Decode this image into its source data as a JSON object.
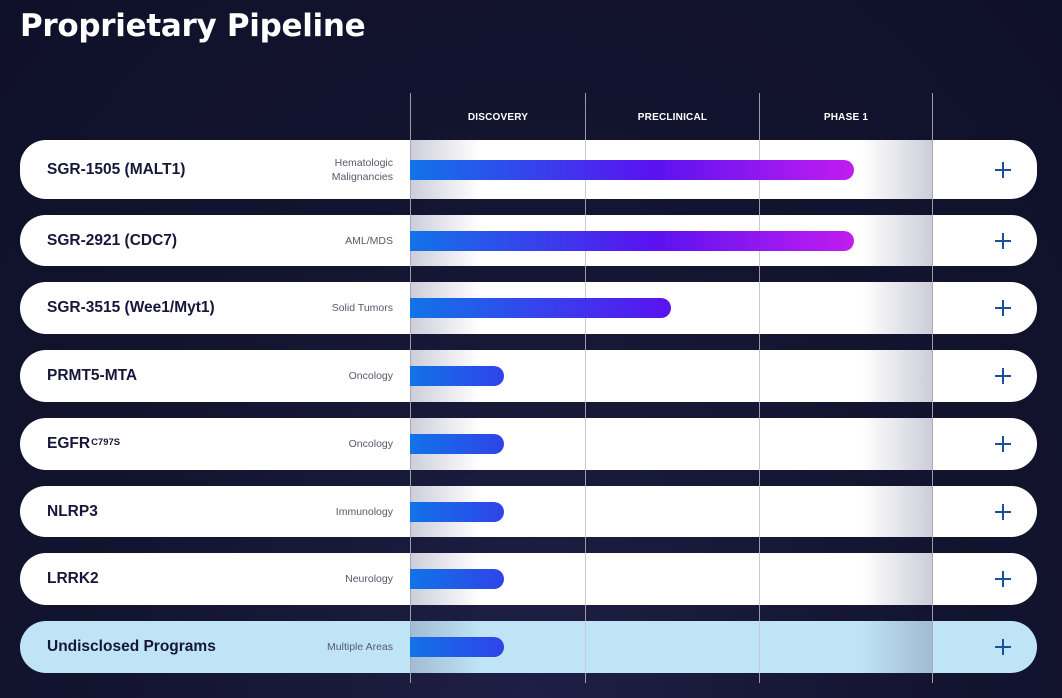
{
  "title": "Proprietary Pipeline",
  "phases": [
    "DISCOVERY",
    "PRECLINICAL",
    "PHASE 1"
  ],
  "colors": {
    "background": "#13142f",
    "bar_start": "#1273e8",
    "bar_mid": "#5a12f0",
    "bar_end": "#c21cf0",
    "highlight_row": "#bee4f5",
    "plus": "#1a4f9a"
  },
  "programs": [
    {
      "name": "SGR-1505 (MALT1)",
      "sup": "",
      "area_line1": "Hematologic",
      "area_line2": "Malignancies",
      "progress": 0.85,
      "highlight": false
    },
    {
      "name": "SGR-2921 (CDC7)",
      "sup": "",
      "area_line1": "AML/MDS",
      "area_line2": "",
      "progress": 0.85,
      "highlight": false
    },
    {
      "name": "SGR-3515 (Wee1/Myt1)",
      "sup": "",
      "area_line1": "Solid Tumors",
      "area_line2": "",
      "progress": 0.5,
      "highlight": false
    },
    {
      "name": "PRMT5-MTA",
      "sup": "",
      "area_line1": "Oncology",
      "area_line2": "",
      "progress": 0.18,
      "highlight": false
    },
    {
      "name": "EGFR",
      "sup": "C797S",
      "area_line1": "Oncology",
      "area_line2": "",
      "progress": 0.18,
      "highlight": false
    },
    {
      "name": "NLRP3",
      "sup": "",
      "area_line1": "Immunology",
      "area_line2": "",
      "progress": 0.18,
      "highlight": false
    },
    {
      "name": "LRRK2",
      "sup": "",
      "area_line1": "Neurology",
      "area_line2": "",
      "progress": 0.18,
      "highlight": false
    },
    {
      "name": "Undisclosed Programs",
      "sup": "",
      "area_line1": "Multiple Areas",
      "area_line2": "",
      "progress": 0.18,
      "highlight": true
    }
  ],
  "expand_icon": "plus-icon"
}
